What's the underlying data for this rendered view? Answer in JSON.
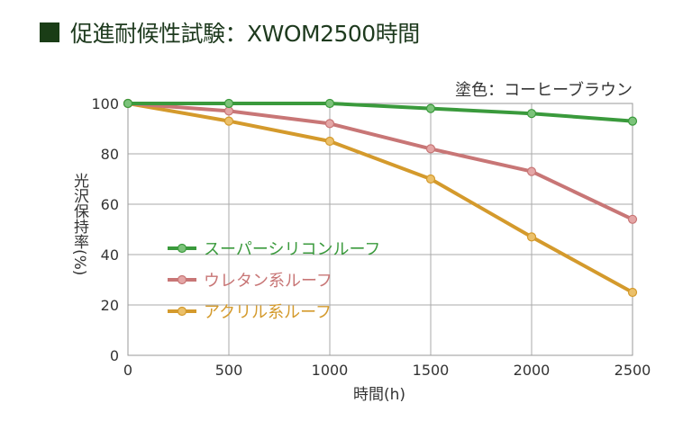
{
  "chart_data": {
    "type": "line",
    "title": "促進耐候性試験：XWOM2500時間",
    "subtitle": "塗色：コーヒーブラウン",
    "xlabel": "時間(h)",
    "ylabel": "光沢保持率(%)",
    "x": [
      0,
      500,
      1000,
      1500,
      2000,
      2500
    ],
    "xlim": [
      0,
      2500
    ],
    "ylim": [
      0,
      100
    ],
    "xticks": [
      0,
      500,
      1000,
      1500,
      2000,
      2500
    ],
    "yticks": [
      0,
      20,
      40,
      60,
      80,
      100
    ],
    "grid": true,
    "legend": "center-left",
    "series": [
      {
        "name": "スーパーシリコンルーフ",
        "color": "#3a9a3c",
        "marker": "#7cc37a",
        "values": [
          100,
          100,
          100,
          98,
          96,
          93
        ]
      },
      {
        "name": "ウレタン系ルーフ",
        "color": "#c87676",
        "marker": "#e4a6a6",
        "values": [
          100,
          97,
          92,
          82,
          73,
          54
        ]
      },
      {
        "name": "アクリル系ルーフ",
        "color": "#d49a2c",
        "marker": "#ebc06a",
        "values": [
          100,
          93,
          85,
          70,
          47,
          25
        ]
      }
    ]
  }
}
